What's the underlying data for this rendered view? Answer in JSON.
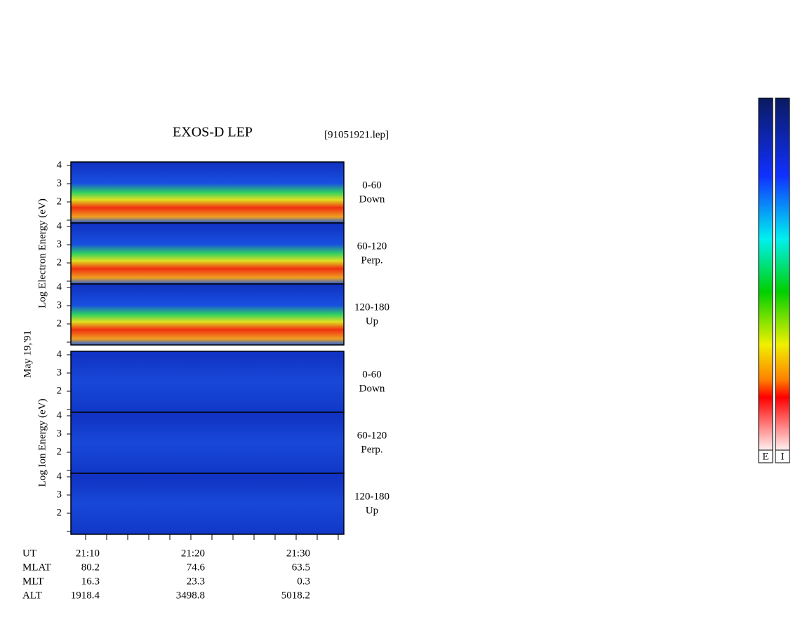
{
  "title": "EXOS-D LEP",
  "file": "[91051921.lep]",
  "date": "May 19,'91",
  "groups": [
    {
      "axis_label": "Log Electron Energy (eV)",
      "panels": [
        {
          "range": "0-60",
          "direction": "Down"
        },
        {
          "range": "60-120",
          "direction": "Perp."
        },
        {
          "range": "120-180",
          "direction": "Up"
        }
      ]
    },
    {
      "axis_label": "Log Ion Energy (eV)",
      "panels": [
        {
          "range": "0-60",
          "direction": "Down"
        },
        {
          "range": "60-120",
          "direction": "Perp."
        },
        {
          "range": "120-180",
          "direction": "Up"
        }
      ]
    }
  ],
  "yticks": [
    "4",
    "3",
    "2"
  ],
  "time_axis": {
    "label": "UT",
    "ticks": [
      "21:10",
      "21:20",
      "21:30"
    ]
  },
  "ephemeris": [
    {
      "label": "MLAT",
      "values": [
        "80.2",
        "74.6",
        "63.5"
      ]
    },
    {
      "label": "MLT",
      "values": [
        "16.3",
        "23.3",
        "0.3"
      ]
    },
    {
      "label": "ALT",
      "values": [
        "1918.4",
        "3498.8",
        "5018.2"
      ]
    }
  ],
  "colorbar_labels": [
    "E",
    "I"
  ]
}
